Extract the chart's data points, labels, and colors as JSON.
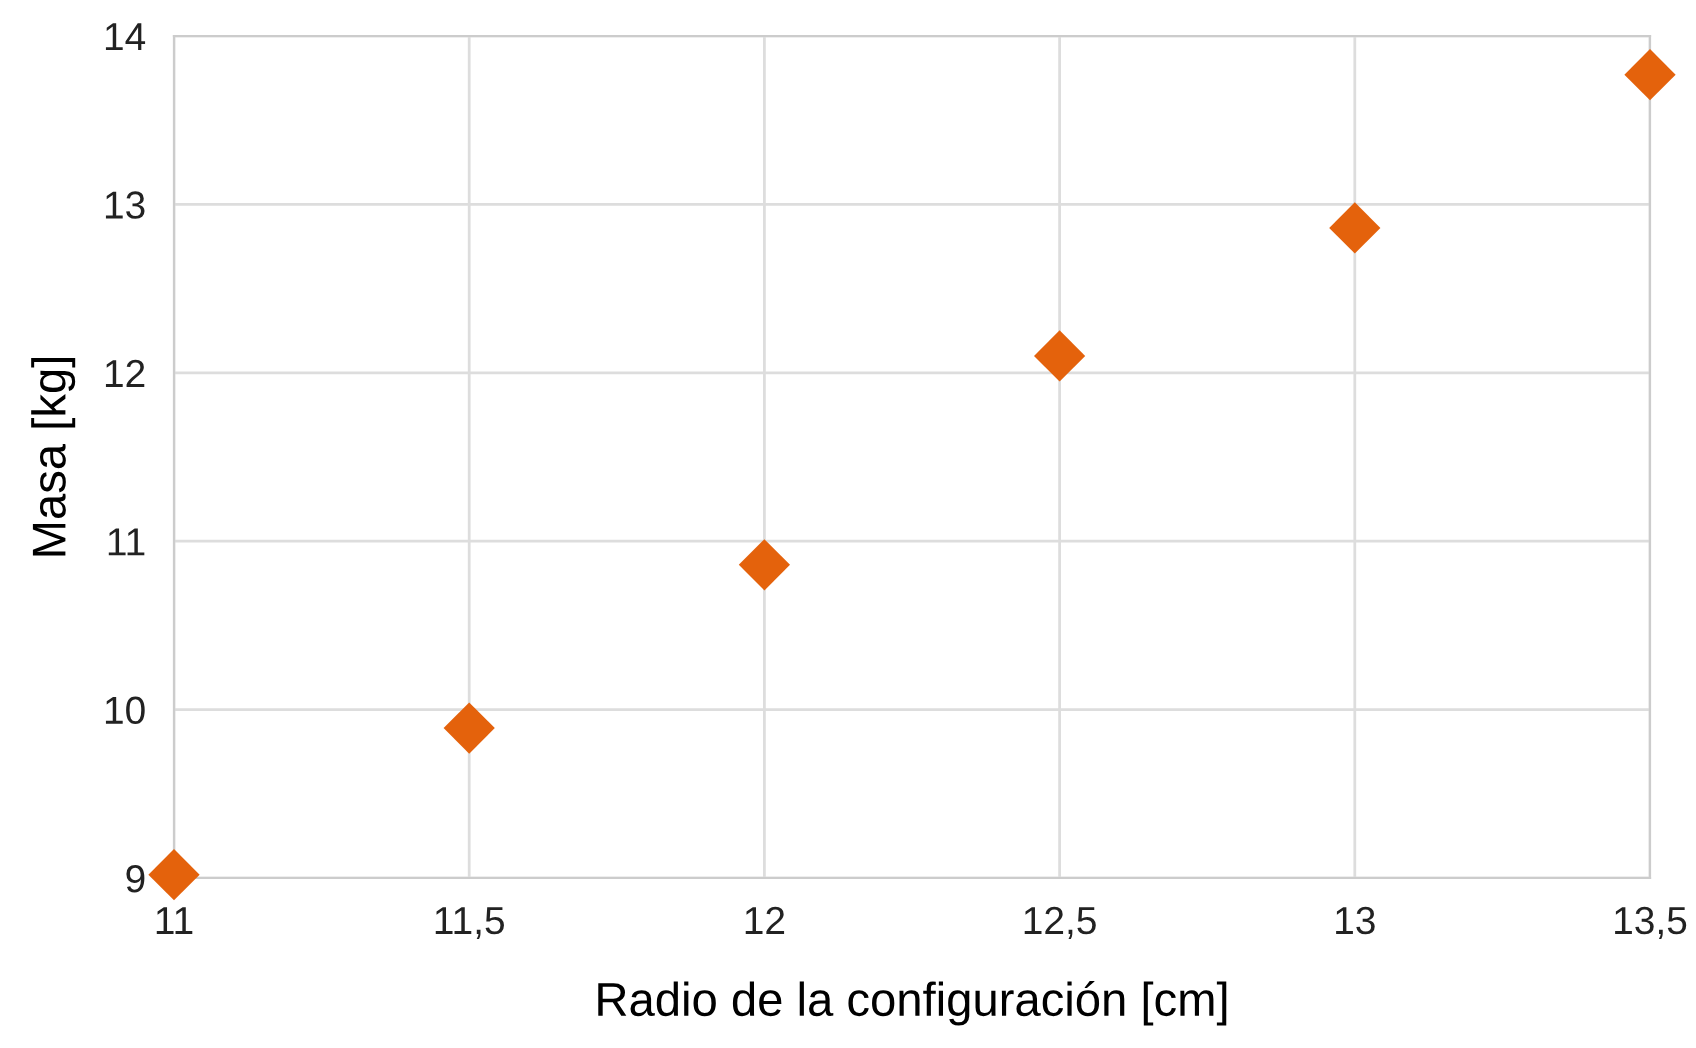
{
  "chart_data": {
    "type": "scatter",
    "xlabel": "Radio de la configuración [cm]",
    "ylabel": "Masa [kg]",
    "x": [
      11,
      11.5,
      12,
      12.5,
      13,
      13.5
    ],
    "series": [
      {
        "color": "#e4620c",
        "values": [
          9.02,
          9.89,
          10.86,
          12.1,
          12.86,
          13.77
        ]
      }
    ],
    "xlim": [
      11,
      13.5
    ],
    "ylim": [
      9,
      14
    ],
    "xticks": [
      11,
      {
        "value": 11.5,
        "label": "11,5"
      },
      12,
      {
        "value": 12.5,
        "label": "12,5"
      },
      13,
      {
        "value": 13.5,
        "label": "13,5"
      }
    ],
    "yticks": [
      9,
      10,
      11,
      12,
      13,
      14
    ],
    "grid": true,
    "marker": "diamond"
  }
}
